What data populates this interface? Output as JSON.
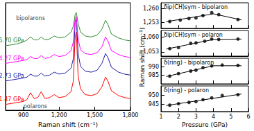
{
  "chart_data": [
    {
      "type": "line",
      "x_label": "Raman shift (cm⁻¹)",
      "x": [
        750,
        800,
        850,
        900,
        930,
        960,
        990,
        1020,
        1050,
        1080,
        1120,
        1160,
        1200,
        1250,
        1300,
        1320,
        1335,
        1345,
        1360,
        1380,
        1420,
        1470,
        1520,
        1560,
        1590,
        1610,
        1640,
        1700,
        1750,
        1800
      ],
      "series": [
        {
          "name": "1.47 GPa",
          "color": "#ff0000",
          "values": [
            0.6,
            0.7,
            0.8,
            0.9,
            1.1,
            1.8,
            1.2,
            1.3,
            1.9,
            1.2,
            1.3,
            1.6,
            1.3,
            1.4,
            1.9,
            3.0,
            7.5,
            8.0,
            3.5,
            2.2,
            1.6,
            1.5,
            1.7,
            2.4,
            3.4,
            3.0,
            2.0,
            1.5,
            1.3,
            1.2
          ]
        },
        {
          "name": "2.73 GPa",
          "color": "#1a1aa6",
          "values": [
            3.0,
            3.1,
            3.2,
            3.3,
            3.4,
            3.7,
            3.5,
            3.5,
            3.8,
            3.5,
            3.6,
            3.9,
            3.7,
            3.8,
            4.3,
            5.3,
            9.0,
            9.3,
            5.8,
            4.5,
            4.0,
            3.9,
            4.1,
            4.8,
            5.8,
            5.4,
            4.4,
            3.9,
            3.7,
            3.6
          ]
        },
        {
          "name": "4.27 GPa",
          "color": "#ff00ff",
          "values": [
            4.8,
            4.9,
            5.0,
            5.1,
            5.2,
            5.5,
            5.3,
            5.3,
            5.6,
            5.3,
            5.4,
            5.7,
            5.5,
            5.6,
            6.1,
            7.0,
            9.4,
            9.6,
            7.3,
            6.2,
            5.8,
            5.7,
            5.9,
            6.5,
            7.5,
            7.1,
            6.1,
            5.7,
            5.5,
            5.4
          ]
        },
        {
          "name": "5.70 GPa",
          "color": "#2e8b2e",
          "values": [
            6.6,
            6.7,
            6.8,
            7.0,
            7.2,
            7.5,
            7.2,
            7.2,
            7.5,
            7.2,
            7.3,
            7.6,
            7.4,
            7.5,
            8.0,
            8.6,
            9.8,
            10.0,
            8.9,
            8.0,
            7.6,
            7.5,
            7.7,
            8.3,
            9.2,
            8.8,
            7.8,
            7.4,
            7.2,
            7.1
          ]
        }
      ],
      "xlim": [
        750,
        1800
      ],
      "xticks": [
        900,
        1200,
        1500,
        1800
      ],
      "ylim": [
        0,
        11
      ],
      "tick_labels": "x",
      "line_style": "solid",
      "annotations": [
        {
          "text": "bipolarons",
          "x": 960,
          "y": 9.4
        },
        {
          "text": "polarons",
          "x": 1000,
          "y": 0.4
        }
      ]
    },
    {
      "type": "scatter",
      "x_label": "Pressure (GPa)",
      "y_label": "Raman shift (cm⁻¹)",
      "xlim": [
        1,
        6
      ],
      "xticks": [
        1,
        2,
        3,
        4,
        5,
        6
      ],
      "marker": "circle",
      "line_style": "solid",
      "color": "#000000",
      "panels": [
        {
          "name": "δip(CH)sym - bipolaron",
          "ylim": [
            1250,
            1263
          ],
          "yticks": [
            1253,
            1260
          ],
          "x": [
            1.5,
            2.1,
            2.6,
            3.0,
            3.4,
            3.9,
            4.3,
            5.4
          ],
          "values": [
            1253.5,
            1254.2,
            1255,
            1255.3,
            1256.5,
            1258,
            1257,
            1254.5
          ],
          "fit": {
            "x": [
              1.3,
              4.0,
              5.6
            ],
            "values": [
              1253.4,
              1257.4,
              1254.3
            ]
          }
        },
        {
          "name": "δip(CH)sym - polaron",
          "ylim": [
            1051,
            1063
          ],
          "yticks": [
            1053,
            1060
          ],
          "x": [
            1.5,
            2.0,
            2.7,
            3.0,
            3.5,
            3.9,
            4.3,
            5.4
          ],
          "values": [
            1054.5,
            1055,
            1057,
            1057.2,
            1058,
            1059,
            1058.8,
            1059
          ],
          "fit": {
            "x": [
              1.3,
              4.0,
              5.6
            ],
            "values": [
              1054.3,
              1058.8,
              1059.0
            ]
          }
        },
        {
          "name": "δ(ring) - bipolaron",
          "ylim": [
            980,
            995
          ],
          "yticks": [
            985,
            990
          ],
          "x": [
            1.5,
            2.0,
            2.7,
            3.0,
            3.4,
            3.9,
            4.5,
            5.4
          ],
          "values": [
            984.5,
            986,
            987.5,
            988,
            989.5,
            990.5,
            991,
            990.8
          ],
          "fit": {
            "x": [
              1.3,
              4.0,
              5.6
            ],
            "values": [
              984.3,
              990.6,
              990.6
            ]
          }
        },
        {
          "name": "δ(ring) - polaron",
          "ylim": [
            941,
            955
          ],
          "yticks": [
            945,
            950
          ],
          "x": [
            1.5,
            2.0,
            2.6,
            3.0,
            3.4,
            3.9,
            4.5,
            5.4
          ],
          "values": [
            944.5,
            945.3,
            946,
            946.5,
            947.5,
            948.5,
            949.8,
            950.2
          ],
          "fit": {
            "x": [
              1.3,
              5.6
            ],
            "values": [
              944.3,
              950.6
            ]
          }
        }
      ]
    }
  ]
}
